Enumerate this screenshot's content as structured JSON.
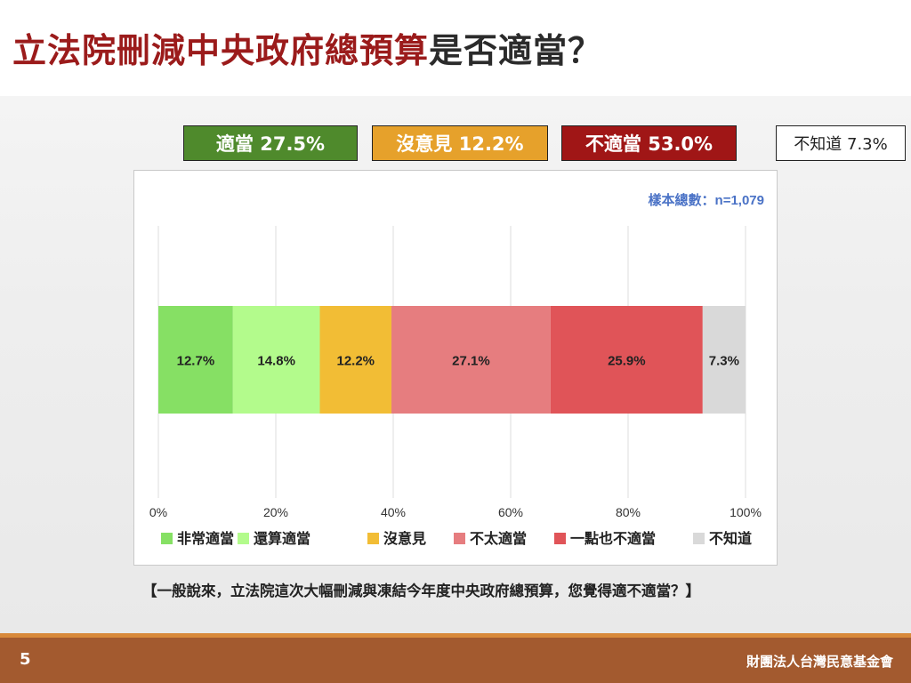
{
  "title": {
    "part_red": "立法院刪減中央政府總預算",
    "part_dark": "是否適當？"
  },
  "summary": {
    "appropriate": "適當 27.5%",
    "no_opinion": "沒意見 12.2%",
    "inappropriate": "不適當 53.0%",
    "unknown": "不知道 7.3%"
  },
  "question": "【一般說來，立法院這次大幅刪減與凍結今年度中央政府總預算，您覺得適不適當？】",
  "footer": {
    "page_number": "5",
    "org": "財團法人台灣民意基金會"
  },
  "chart_data": {
    "type": "bar",
    "orientation": "horizontal-stacked",
    "sample_note": "樣本總數：n=1,079",
    "series": [
      {
        "name": "非常適當",
        "value": 12.7,
        "label": "12.7%",
        "color": "#86e064"
      },
      {
        "name": "還算適當",
        "value": 14.8,
        "label": "14.8%",
        "color": "#b3fb8c"
      },
      {
        "name": "沒意見",
        "value": 12.2,
        "label": "12.2%",
        "color": "#f2bd35"
      },
      {
        "name": "不太適當",
        "value": 27.1,
        "label": "27.1%",
        "color": "#e67d7f"
      },
      {
        "name": "一點也不適當",
        "value": 25.9,
        "label": "25.9%",
        "color": "#e05458"
      },
      {
        "name": "不知道",
        "value": 7.3,
        "label": "7.3%",
        "color": "#d9d9d9"
      }
    ],
    "x_ticks": [
      "0%",
      "20%",
      "40%",
      "60%",
      "80%",
      "100%"
    ],
    "xlim": [
      0,
      100
    ],
    "grid": true,
    "legend": "bottom"
  }
}
